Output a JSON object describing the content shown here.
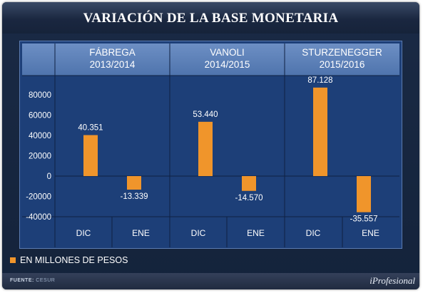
{
  "title": "VARIACIÓN DE LA BASE MONETARIA",
  "legend_label": "EN MILLONES DE PESOS",
  "footer": {
    "source_label": "FUENTE:",
    "source_value": "CESUR",
    "brand": "iProfesional"
  },
  "colors": {
    "bar": "#f0952b",
    "panel": "#1d3f78",
    "header_band": "#5b7fb8",
    "background": "#16243d"
  },
  "chart_data": {
    "type": "bar",
    "title": "VARIACIÓN DE LA BASE MONETARIA",
    "xlabel": "",
    "ylabel": "",
    "ylim": [
      -40000,
      80000
    ],
    "yticks": [
      80000,
      60000,
      40000,
      20000,
      0,
      -20000,
      -40000
    ],
    "ytick_labels": [
      "80000",
      "60000",
      "40000",
      "20000",
      "0",
      "-20000",
      "-40000"
    ],
    "grid": false,
    "legend_position": "bottom-left",
    "groups": [
      {
        "name": "FÁBREGA",
        "years": "2013/2014",
        "bars": [
          {
            "category": "DIC",
            "value": 40351,
            "label": "40.351"
          },
          {
            "category": "ENE",
            "value": -13339,
            "label": "-13.339"
          }
        ]
      },
      {
        "name": "VANOLI",
        "years": "2014/2015",
        "bars": [
          {
            "category": "DIC",
            "value": 53440,
            "label": "53.440"
          },
          {
            "category": "ENE",
            "value": -14570,
            "label": "-14.570"
          }
        ]
      },
      {
        "name": "STURZENEGGER",
        "years": "2015/2016",
        "bars": [
          {
            "category": "DIC",
            "value": 87128,
            "label": "87.128"
          },
          {
            "category": "ENE",
            "value": -35557,
            "label": "-35.557"
          }
        ]
      }
    ]
  }
}
